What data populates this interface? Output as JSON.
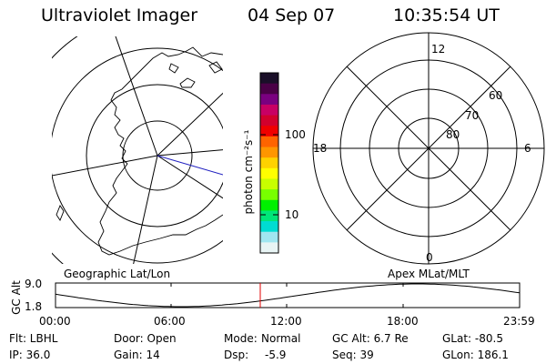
{
  "header": {
    "instrument": "Ultraviolet Imager",
    "date": "04 Sep 07",
    "time": "10:35:54 UT"
  },
  "colorbar": {
    "unit_label": "photon cm⁻²s⁻¹",
    "ticks": [
      "100",
      "10"
    ],
    "colors": [
      "#1a0f28",
      "#4a0046",
      "#7a0080",
      "#c80064",
      "#d2002d",
      "#f00000",
      "#ff6400",
      "#ff9600",
      "#ffd200",
      "#ffff00",
      "#c8ff00",
      "#78ff00",
      "#00f000",
      "#00e678",
      "#00dcd2",
      "#a0e6f0",
      "#e8f4f4"
    ]
  },
  "geo_panel": {
    "label": "Geographic Lat/Lon"
  },
  "mag_panel": {
    "label": "Apex MLat/MLT",
    "mlt_labels": {
      "top": "12",
      "left": "18",
      "right": "6",
      "bottom": "0"
    },
    "lat_labels": [
      "60",
      "70",
      "80"
    ]
  },
  "altitude_plot": {
    "ylabel": "GC Alt",
    "yticks": [
      "9.0",
      "1.8"
    ],
    "xticks": [
      "00:00",
      "06:00",
      "12:00",
      "18:00",
      "23:59"
    ],
    "current_time_color": "#e00000"
  },
  "info": {
    "filter": "Flt: LBHL",
    "ip": "IP: 36.0",
    "door": "Door: Open",
    "gain": "Gain: 14",
    "mode_label": "Mode:",
    "mode_value": "Normal",
    "dsp_label": "Dsp:",
    "dsp_value": "-5.9",
    "gc_alt": "GC Alt: 6.7 Re",
    "seq": "Seq: 39",
    "glat": "GLat: -80.5",
    "glon": "GLon: 186.1"
  }
}
